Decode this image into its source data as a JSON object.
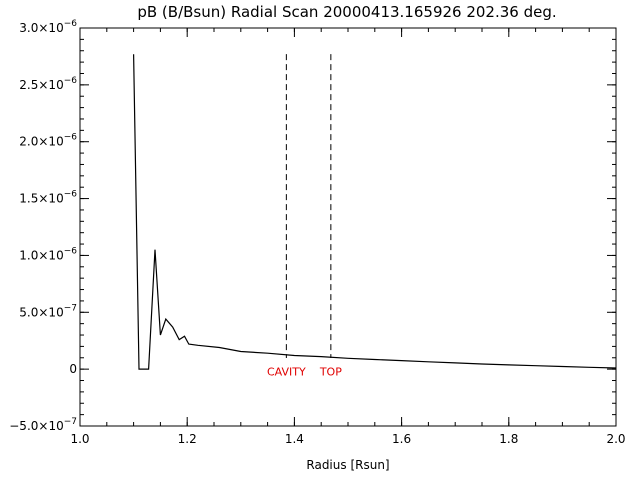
{
  "chart_data": {
    "type": "line",
    "title": "pB (B/Bsun) Radial Scan 20000413.165926 202.36 deg.",
    "xlabel": "Radius [Rsun]",
    "ylabel": "",
    "xlim": [
      1.0,
      2.0
    ],
    "ylim": [
      -5e-07,
      3e-06
    ],
    "grid": false,
    "xticks": [
      1.0,
      1.2,
      1.4,
      1.6,
      1.8,
      2.0
    ],
    "xtick_labels": [
      "1.0",
      "1.2",
      "1.4",
      "1.6",
      "1.8",
      "2.0"
    ],
    "yticks": [
      {
        "value": -5e-07,
        "mantissa": "−5.0×10",
        "exponent": "−7"
      },
      {
        "value": 0,
        "mantissa": "0",
        "exponent": ""
      },
      {
        "value": 5e-07,
        "mantissa": "5.0×10",
        "exponent": "−7"
      },
      {
        "value": 1e-06,
        "mantissa": "1.0×10",
        "exponent": "−6"
      },
      {
        "value": 1.5e-06,
        "mantissa": "1.5×10",
        "exponent": "−6"
      },
      {
        "value": 2e-06,
        "mantissa": "2.0×10",
        "exponent": "−6"
      },
      {
        "value": 2.5e-06,
        "mantissa": "2.5×10",
        "exponent": "−6"
      },
      {
        "value": 3e-06,
        "mantissa": "3.0×10",
        "exponent": "−6"
      }
    ],
    "series": [
      {
        "color": "#000000",
        "x": [
          1.1,
          1.11,
          1.128,
          1.14,
          1.15,
          1.16,
          1.173,
          1.185,
          1.195,
          1.203,
          1.22,
          1.26,
          1.3,
          1.35,
          1.4,
          1.45,
          1.5,
          1.55,
          1.6,
          1.65,
          1.7,
          1.75,
          1.8,
          1.85,
          1.9,
          1.95,
          2.0
        ],
        "y": [
          2.77e-06,
          0,
          0,
          1.05e-06,
          3e-07,
          4.4e-07,
          3.7e-07,
          2.6e-07,
          2.9e-07,
          2.2e-07,
          2.1e-07,
          1.9e-07,
          1.55e-07,
          1.4e-07,
          1.2e-07,
          1.1e-07,
          9.5e-08,
          8.5e-08,
          7.5e-08,
          6.5e-08,
          5.5e-08,
          4.5e-08,
          3.7e-08,
          3e-08,
          2.3e-08,
          1.6e-08,
          1e-08
        ]
      }
    ],
    "markers": [
      {
        "x": 1.385,
        "y_top": 2.77e-06,
        "style": "dashed",
        "color": "#000000"
      },
      {
        "x": 1.468,
        "y_top": 2.77e-06,
        "style": "dashed",
        "color": "#000000"
      }
    ],
    "annotations": [
      {
        "text": "CAVITY",
        "x": 1.385,
        "y": -5.5e-08,
        "color": "#e00000"
      },
      {
        "text": "TOP",
        "x": 1.468,
        "y": -5.5e-08,
        "color": "#e00000"
      }
    ]
  }
}
